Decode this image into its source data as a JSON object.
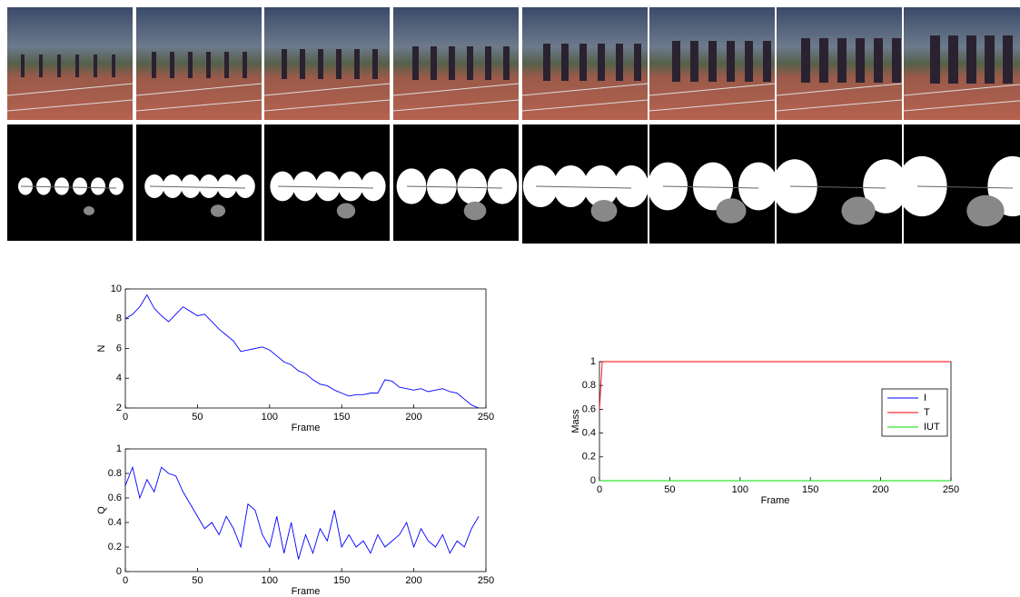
{
  "chart_data": [
    {
      "type": "line",
      "xlabel": "Frame",
      "ylabel": "N",
      "color": "#0000ff",
      "x": [
        0,
        5,
        10,
        15,
        20,
        25,
        30,
        35,
        40,
        45,
        50,
        55,
        60,
        65,
        70,
        75,
        80,
        85,
        90,
        95,
        100,
        105,
        110,
        115,
        120,
        125,
        130,
        135,
        140,
        145,
        150,
        155,
        160,
        165,
        170,
        175,
        180,
        185,
        190,
        195,
        200,
        205,
        210,
        215,
        220,
        225,
        230,
        235,
        240,
        245
      ],
      "values": [
        8,
        8.3,
        8.8,
        9.6,
        8.7,
        8.2,
        7.8,
        8.3,
        8.8,
        8.5,
        8.2,
        8.3,
        7.8,
        7.3,
        6.9,
        6.5,
        5.8,
        5.9,
        6.0,
        6.1,
        5.9,
        5.5,
        5.1,
        4.9,
        4.5,
        4.3,
        3.9,
        3.6,
        3.5,
        3.2,
        3.0,
        2.8,
        2.9,
        2.9,
        3.0,
        3.0,
        3.9,
        3.8,
        3.4,
        3.3,
        3.2,
        3.3,
        3.1,
        3.2,
        3.3,
        3.1,
        3.0,
        2.6,
        2.2,
        2.0
      ],
      "xlim": [
        0,
        250
      ],
      "xticks": [
        0,
        50,
        100,
        150,
        200,
        250
      ],
      "ylim": [
        2,
        10
      ],
      "yticks": [
        2,
        4,
        6,
        8,
        10
      ]
    },
    {
      "type": "line",
      "xlabel": "Frame",
      "ylabel": "Q",
      "color": "#0000ff",
      "x": [
        0,
        5,
        10,
        15,
        20,
        25,
        30,
        35,
        40,
        45,
        50,
        55,
        60,
        65,
        70,
        75,
        80,
        85,
        90,
        95,
        100,
        105,
        110,
        115,
        120,
        125,
        130,
        135,
        140,
        145,
        150,
        155,
        160,
        165,
        170,
        175,
        180,
        185,
        190,
        195,
        200,
        205,
        210,
        215,
        220,
        225,
        230,
        235,
        240,
        245
      ],
      "values": [
        0.7,
        0.85,
        0.6,
        0.75,
        0.65,
        0.85,
        0.8,
        0.78,
        0.65,
        0.55,
        0.45,
        0.35,
        0.4,
        0.3,
        0.45,
        0.35,
        0.2,
        0.55,
        0.5,
        0.3,
        0.2,
        0.45,
        0.15,
        0.4,
        0.1,
        0.3,
        0.15,
        0.35,
        0.25,
        0.5,
        0.2,
        0.3,
        0.2,
        0.25,
        0.15,
        0.3,
        0.2,
        0.25,
        0.3,
        0.4,
        0.2,
        0.35,
        0.25,
        0.2,
        0.3,
        0.15,
        0.25,
        0.2,
        0.35,
        0.45
      ],
      "xlim": [
        0,
        250
      ],
      "xticks": [
        0,
        50,
        100,
        150,
        200,
        250
      ],
      "ylim": [
        0,
        1
      ],
      "yticks": [
        0,
        0.2,
        0.4,
        0.6,
        0.8,
        1
      ]
    },
    {
      "type": "line",
      "xlabel": "Frame",
      "ylabel": "Mass",
      "legend": "right",
      "x": [
        0,
        2,
        250
      ],
      "series": [
        {
          "name": "I",
          "color": "#0000ff",
          "values": [
            0,
            0,
            0
          ]
        },
        {
          "name": "T",
          "color": "#ff0000",
          "values": [
            0.6,
            1,
            1
          ]
        },
        {
          "name": "IUT",
          "color": "#00dd00",
          "values": [
            0,
            0,
            0
          ]
        }
      ],
      "xlim": [
        0,
        250
      ],
      "xticks": [
        0,
        50,
        100,
        150,
        200,
        250
      ],
      "ylim": [
        0,
        1
      ],
      "yticks": [
        0,
        0.2,
        0.4,
        0.6,
        0.8,
        1
      ]
    }
  ]
}
